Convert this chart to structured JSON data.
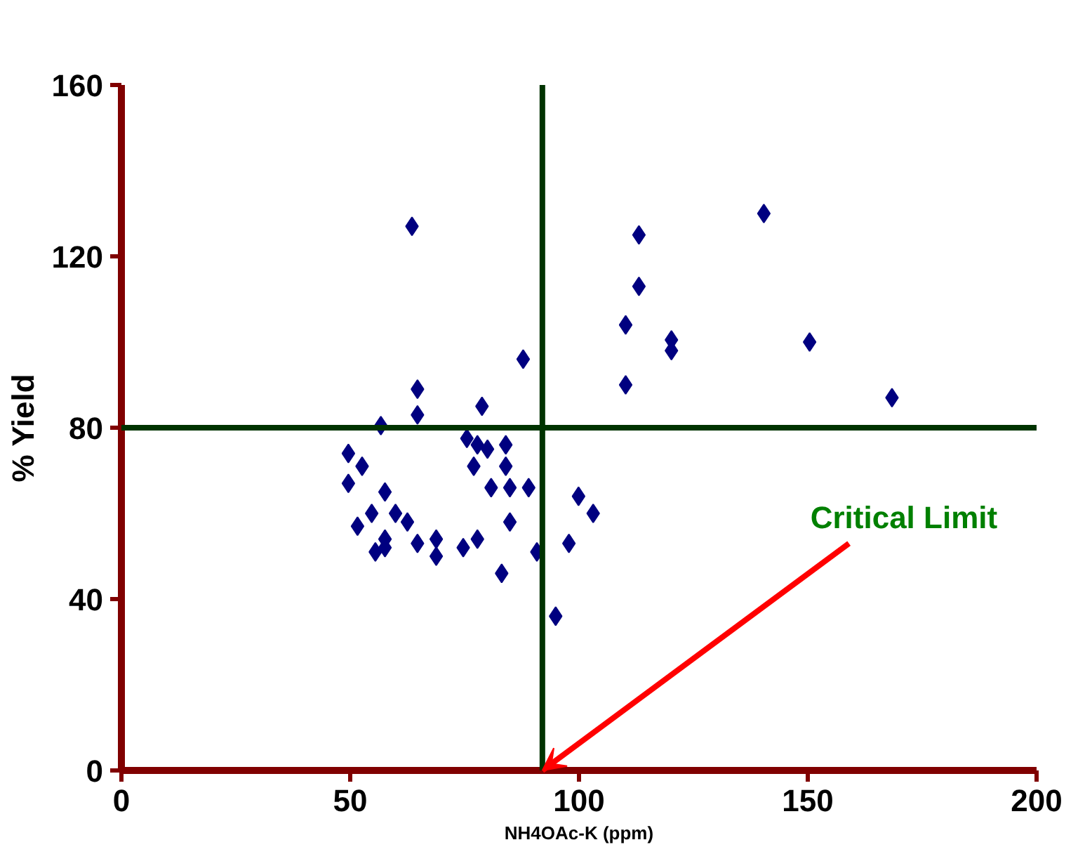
{
  "chart_data": {
    "type": "scatter",
    "xlabel": "NH4OAc-K (ppm)",
    "ylabel": "% Yield",
    "x": [
      63.5,
      87.8,
      64.7,
      64.7,
      78.8,
      56.7,
      75.5,
      77.8,
      80.0,
      84.0,
      49.6,
      52.6,
      77.0,
      84.0,
      49.6,
      57.6,
      80.8,
      84.9,
      89.0,
      99.9,
      103.1,
      54.7,
      59.9,
      62.5,
      51.6,
      84.9,
      57.6,
      64.7,
      68.8,
      77.8,
      74.7,
      55.5,
      57.6,
      68.8,
      90.8,
      97.8,
      83.1,
      94.9,
      140.4,
      113.1,
      113.1,
      110.2,
      120.2,
      120.2,
      150.4,
      110.2,
      168.4
    ],
    "series": [
      {
        "color": "#000080",
        "values": [
          127,
          96,
          89,
          83,
          85,
          80.5,
          77.5,
          76,
          75,
          76,
          74,
          71,
          71,
          71,
          67,
          65,
          66,
          66,
          66,
          64,
          60,
          60,
          60,
          58,
          57,
          58,
          54,
          53,
          54,
          54,
          52,
          51,
          52,
          50,
          51,
          53,
          46,
          36,
          130,
          125,
          113,
          104,
          100.5,
          98,
          100,
          90,
          87
        ]
      }
    ],
    "xlim": [
      0,
      200
    ],
    "ylim": [
      0,
      160
    ],
    "xticks": [
      0,
      50,
      100,
      150,
      200
    ],
    "yticks": [
      0,
      40,
      80,
      120,
      160
    ],
    "grid": false,
    "marker": "diamond",
    "ref_lines": [
      {
        "axis": "x",
        "value": 92,
        "label": null,
        "color": "#003300"
      },
      {
        "axis": "y",
        "value": 80,
        "label": null,
        "color": "#003300"
      }
    ],
    "annotations": [
      {
        "text": "Critical Limit",
        "x": 92,
        "y": 0
      }
    ]
  }
}
